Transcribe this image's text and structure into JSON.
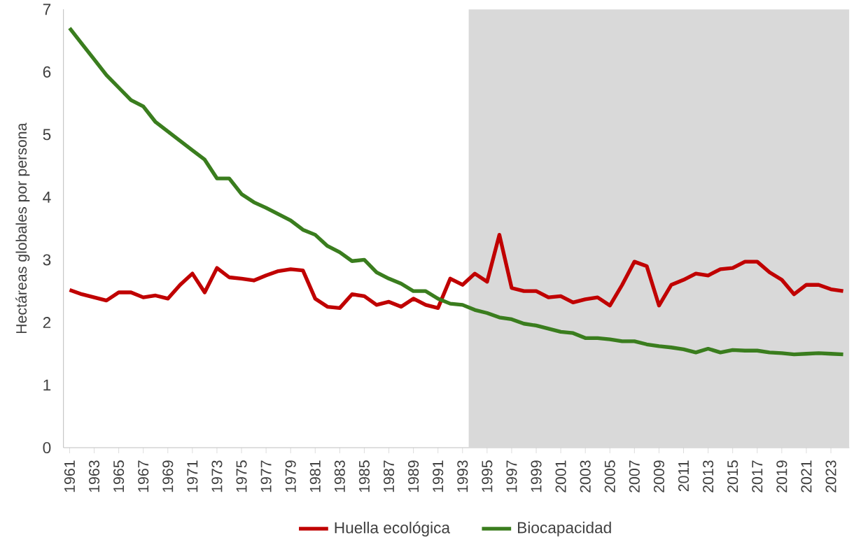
{
  "chart_data": {
    "type": "line",
    "ylabel": "Hectáreas globales por persona",
    "x": [
      1961,
      1962,
      1963,
      1964,
      1965,
      1966,
      1967,
      1968,
      1969,
      1970,
      1971,
      1972,
      1973,
      1974,
      1975,
      1976,
      1977,
      1978,
      1979,
      1980,
      1981,
      1982,
      1983,
      1984,
      1985,
      1986,
      1987,
      1988,
      1989,
      1990,
      1991,
      1992,
      1993,
      1994,
      1995,
      1996,
      1997,
      1998,
      1999,
      2000,
      2001,
      2002,
      2003,
      2004,
      2005,
      2006,
      2007,
      2008,
      2009,
      2010,
      2011,
      2012,
      2013,
      2014,
      2015,
      2016,
      2017,
      2018,
      2019,
      2020,
      2021,
      2022,
      2023,
      2024
    ],
    "series": [
      {
        "name": "Huella ecológica",
        "color": "#c00000",
        "values": [
          2.52,
          2.45,
          2.4,
          2.35,
          2.48,
          2.48,
          2.4,
          2.43,
          2.38,
          2.6,
          2.78,
          2.48,
          2.87,
          2.72,
          2.7,
          2.67,
          2.75,
          2.82,
          2.85,
          2.83,
          2.38,
          2.25,
          2.23,
          2.45,
          2.42,
          2.28,
          2.33,
          2.25,
          2.38,
          2.28,
          2.23,
          2.7,
          2.6,
          2.78,
          2.65,
          3.4,
          2.55,
          2.5,
          2.5,
          2.4,
          2.42,
          2.32,
          2.37,
          2.4,
          2.27,
          2.6,
          2.97,
          2.9,
          2.27,
          2.6,
          2.68,
          2.78,
          2.75,
          2.85,
          2.87,
          2.97,
          2.97,
          2.8,
          2.68,
          2.45,
          2.6,
          2.6,
          2.53,
          2.5
        ]
      },
      {
        "name": "Biocapacidad",
        "color": "#3a7d1e",
        "values": [
          6.7,
          6.45,
          6.2,
          5.95,
          5.75,
          5.55,
          5.45,
          5.2,
          5.05,
          4.9,
          4.75,
          4.6,
          4.3,
          4.3,
          4.05,
          3.92,
          3.83,
          3.73,
          3.63,
          3.48,
          3.4,
          3.22,
          3.12,
          2.98,
          3.0,
          2.8,
          2.7,
          2.62,
          2.5,
          2.5,
          2.38,
          2.3,
          2.28,
          2.2,
          2.15,
          2.08,
          2.05,
          1.98,
          1.95,
          1.9,
          1.85,
          1.83,
          1.75,
          1.75,
          1.73,
          1.7,
          1.7,
          1.65,
          1.62,
          1.6,
          1.57,
          1.52,
          1.58,
          1.52,
          1.56,
          1.55,
          1.55,
          1.52,
          1.51,
          1.49,
          1.5,
          1.51,
          1.5,
          1.49
        ]
      }
    ],
    "xlim": [
      1960.5,
      2024.5
    ],
    "xticks": [
      1961,
      1963,
      1965,
      1967,
      1969,
      1971,
      1973,
      1975,
      1977,
      1979,
      1981,
      1983,
      1985,
      1987,
      1989,
      1991,
      1993,
      1995,
      1997,
      1999,
      2001,
      2003,
      2005,
      2007,
      2009,
      2011,
      2013,
      2015,
      2017,
      2019,
      2021,
      2023
    ],
    "ylim": [
      0,
      7
    ],
    "yticks": [
      0,
      1,
      2,
      3,
      4,
      5,
      6,
      7
    ],
    "bands": [
      {
        "axis": "x",
        "from": 1993.5,
        "to": 2024.5,
        "color": "#d9d9d9"
      }
    ],
    "legend": "bottom",
    "grid": false,
    "marker": "none",
    "line_style": "solid"
  }
}
